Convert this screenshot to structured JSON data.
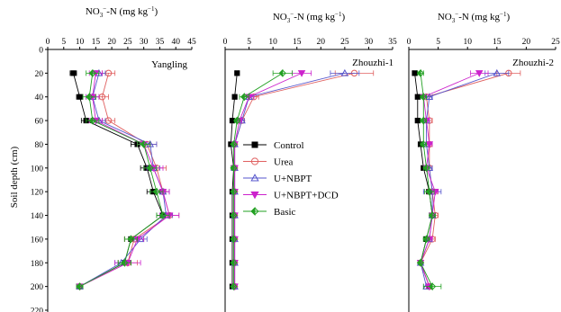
{
  "chart_data": [
    {
      "type": "line",
      "panel_label": "Yangling",
      "xlabel_top": "NO3−-N (mg kg−1)",
      "ylabel": "Soil depth (cm)",
      "xlim": [
        0,
        45
      ],
      "x_ticks": [
        0,
        5,
        10,
        15,
        20,
        25,
        30,
        35,
        40,
        45
      ],
      "ylim": [
        0,
        220
      ],
      "y_ticks": [
        0,
        20,
        40,
        60,
        80,
        100,
        120,
        140,
        160,
        180,
        200,
        220
      ],
      "y_reversed": true,
      "depths": [
        20,
        40,
        60,
        80,
        100,
        120,
        140,
        160,
        180,
        200
      ],
      "series": [
        {
          "name": "Control",
          "values": [
            8,
            10,
            12,
            28,
            31,
            33,
            36,
            26,
            24,
            10
          ],
          "errors": [
            1,
            1,
            1.5,
            2,
            2,
            2,
            2,
            2,
            2,
            1
          ]
        },
        {
          "name": "Urea",
          "values": [
            19,
            17,
            19,
            31,
            34,
            36,
            38,
            27,
            25,
            10
          ],
          "errors": [
            2,
            2,
            2,
            3,
            3,
            2,
            3,
            3,
            3,
            1
          ]
        },
        {
          "name": "U+NBPT",
          "values": [
            16,
            14,
            16,
            32,
            33,
            36,
            37,
            29,
            23,
            10
          ],
          "errors": [
            2,
            2,
            2,
            2,
            2,
            2,
            2,
            2,
            2,
            1
          ]
        },
        {
          "name": "U+NBPT+DCD",
          "values": [
            15,
            14,
            15,
            30,
            33,
            36,
            38,
            28,
            25,
            10
          ],
          "errors": [
            2,
            2,
            2,
            2,
            3,
            2,
            3,
            2,
            4,
            1
          ]
        },
        {
          "name": "Basic",
          "values": [
            14,
            13,
            14,
            30,
            32,
            34,
            36,
            26,
            24,
            10
          ],
          "errors": [
            2,
            2,
            2,
            2,
            2,
            2,
            2,
            2,
            2,
            1
          ]
        }
      ]
    },
    {
      "type": "line",
      "panel_label": "Zhouzhi-1",
      "xlabel_top": "NO3−-N (mg kg−1)",
      "xlim": [
        0,
        35
      ],
      "x_ticks": [
        0,
        5,
        10,
        15,
        20,
        25,
        30,
        35
      ],
      "ylim": [
        0,
        220
      ],
      "y_reversed": true,
      "depths": [
        20,
        40,
        60,
        80,
        100,
        120,
        140,
        160,
        180,
        200
      ],
      "series": [
        {
          "name": "Control",
          "values": [
            2.5,
            2,
            1.5,
            1.2,
            1.8,
            1.5,
            1.5,
            1.5,
            1.5,
            1.5
          ],
          "errors": [
            0.3,
            0.3,
            0.3,
            0.3,
            0.3,
            0.3,
            0.3,
            0.3,
            0.3,
            0.3
          ]
        },
        {
          "name": "Urea",
          "values": [
            27,
            6,
            3.5,
            2,
            2,
            2,
            2,
            2,
            2,
            2
          ],
          "errors": [
            4,
            1,
            0.5,
            0.3,
            0.3,
            0.3,
            0.3,
            0.3,
            0.3,
            0.3
          ]
        },
        {
          "name": "U+NBPT",
          "values": [
            25,
            5,
            3.5,
            2,
            2,
            2,
            2,
            2,
            2,
            2
          ],
          "errors": [
            3,
            1,
            0.5,
            0.3,
            0.3,
            0.3,
            0.3,
            0.3,
            0.3,
            0.3
          ]
        },
        {
          "name": "U+NBPT+DCD",
          "values": [
            16,
            5,
            3,
            2,
            2,
            2,
            2,
            2,
            2,
            2
          ],
          "errors": [
            2,
            1,
            0.5,
            0.3,
            0.3,
            0.3,
            0.3,
            0.3,
            0.3,
            0.3
          ]
        },
        {
          "name": "Basic",
          "values": [
            12,
            4,
            2.5,
            1.8,
            1.8,
            1.8,
            1.8,
            1.8,
            1.8,
            1.8
          ],
          "errors": [
            2,
            1,
            0.5,
            0.3,
            0.3,
            0.3,
            0.3,
            0.3,
            0.3,
            0.3
          ]
        }
      ]
    },
    {
      "type": "line",
      "panel_label": "Zhouzhi-2",
      "xlabel_top": "NO3−-N (mg kg−1)",
      "xlim": [
        0,
        25
      ],
      "x_ticks": [
        0,
        5,
        10,
        15,
        20,
        25
      ],
      "ylim": [
        0,
        220
      ],
      "y_reversed": true,
      "depths": [
        20,
        40,
        60,
        80,
        100,
        120,
        140,
        160,
        180,
        200
      ],
      "series": [
        {
          "name": "Control",
          "values": [
            1,
            1.5,
            1.5,
            2,
            2.5,
            3.5,
            4,
            3,
            2,
            3.5
          ],
          "errors": [
            0.3,
            0.3,
            0.3,
            0.3,
            0.3,
            0.5,
            0.5,
            0.5,
            0.3,
            0.5
          ]
        },
        {
          "name": "Urea",
          "values": [
            17,
            3,
            3.5,
            3.5,
            3.5,
            4,
            4.5,
            4,
            2,
            3.5
          ],
          "errors": [
            2,
            0.5,
            0.5,
            0.5,
            0.5,
            0.8,
            0.5,
            0.5,
            0.3,
            0.5
          ]
        },
        {
          "name": "U+NBPT",
          "values": [
            15,
            3.5,
            3,
            3,
            3.5,
            4,
            4,
            3.5,
            2,
            3
          ],
          "errors": [
            2,
            0.5,
            0.5,
            0.5,
            0.5,
            1.5,
            0.5,
            0.5,
            0.3,
            0.5
          ]
        },
        {
          "name": "U+NBPT+DCD",
          "values": [
            12,
            2.5,
            3,
            3.5,
            3,
            4.5,
            4,
            3.5,
            2,
            3.5
          ],
          "errors": [
            1.5,
            0.5,
            0.5,
            0.5,
            0.5,
            0.5,
            0.5,
            0.5,
            0.3,
            0.5
          ]
        },
        {
          "name": "Basic",
          "values": [
            2,
            2.5,
            2.5,
            2.5,
            3,
            3.5,
            4,
            3,
            2,
            4
          ],
          "errors": [
            0.5,
            0.5,
            0.5,
            0.5,
            0.5,
            0.8,
            0.5,
            0.5,
            0.3,
            1.5
          ]
        }
      ]
    }
  ],
  "legend": {
    "placement": "center-left of middle panel",
    "items": [
      {
        "label": "Control",
        "color": "#000000",
        "marker": "square-filled"
      },
      {
        "label": "Urea",
        "color": "#e06060",
        "marker": "circle-open"
      },
      {
        "label": "U+NBPT",
        "color": "#5555cc",
        "marker": "triangle-open"
      },
      {
        "label": "U+NBPT+DCD",
        "color": "#cc22cc",
        "marker": "triangle-down-filled"
      },
      {
        "label": "Basic",
        "color": "#22a022",
        "marker": "diamond-half"
      }
    ]
  }
}
